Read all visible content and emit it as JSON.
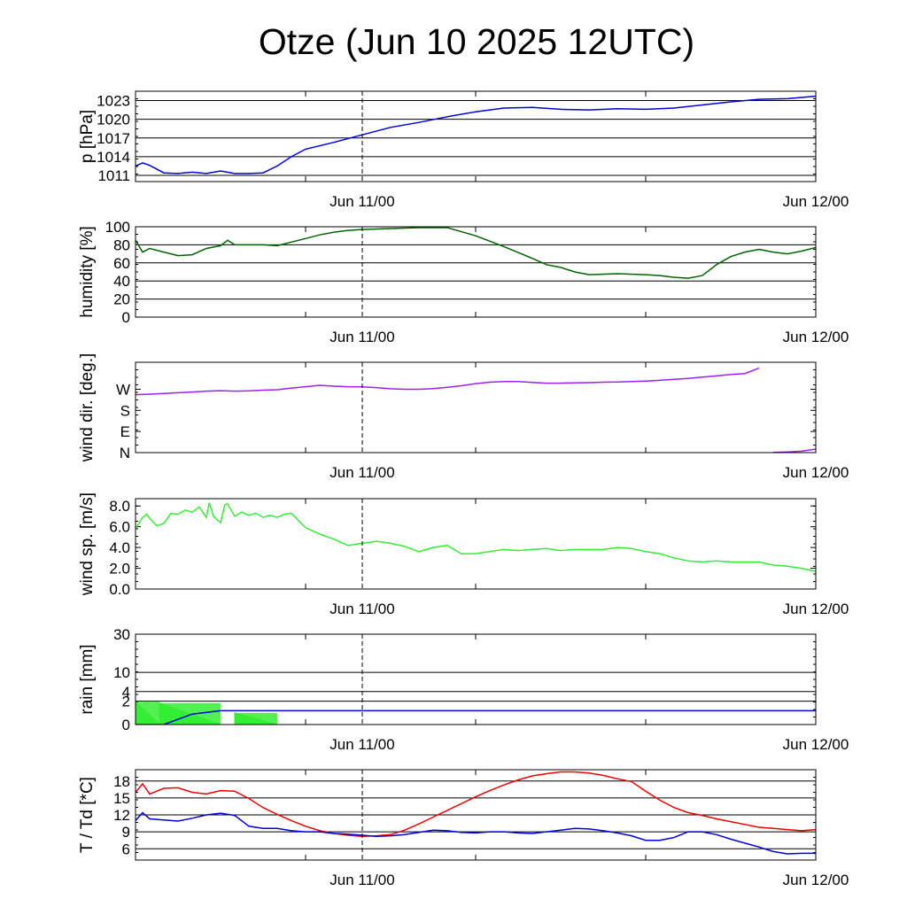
{
  "title": "Otze (Jun 10 2025 12UTC)",
  "x_ticks": [
    "Jun 11/00",
    "Jun 12/00"
  ],
  "chart_data": [
    {
      "type": "line",
      "ylabel": "p [hPa]",
      "ylim": [
        1010,
        1024.5
      ],
      "yticks": [
        1011,
        1014,
        1017,
        1020,
        1023
      ],
      "ytick_labels": [
        "1011",
        "1014",
        "1017",
        "1020",
        "1023"
      ],
      "grid": true,
      "x_hours": [
        0,
        0.5,
        1,
        1.5,
        2,
        3,
        4,
        5,
        6,
        7,
        8,
        9,
        10,
        11,
        12,
        14,
        16,
        18,
        20,
        22,
        24,
        26,
        28,
        30,
        32,
        34,
        36,
        38,
        40,
        42,
        44,
        46,
        48
      ],
      "series": [
        {
          "color": "#0000dd",
          "values": [
            1012.5,
            1013.0,
            1012.6,
            1012.0,
            1011.4,
            1011.3,
            1011.5,
            1011.3,
            1011.7,
            1011.3,
            1011.3,
            1011.4,
            1012.5,
            1014.0,
            1015.2,
            1016.3,
            1017.5,
            1018.7,
            1019.5,
            1020.4,
            1021.2,
            1021.8,
            1021.9,
            1021.6,
            1021.5,
            1021.7,
            1021.6,
            1021.8,
            1022.3,
            1022.8,
            1023.2,
            1023.3,
            1023.7
          ]
        }
      ]
    },
    {
      "type": "line",
      "ylabel": "humidity [%]",
      "ylim": [
        0,
        100
      ],
      "yticks": [
        0,
        20,
        40,
        60,
        80,
        100
      ],
      "ytick_labels": [
        "0",
        "20",
        "40",
        "60",
        "80",
        "100"
      ],
      "grid": true,
      "x_hours": [
        0,
        0.5,
        1,
        2,
        3,
        4,
        5,
        6,
        6.5,
        7,
        8,
        9,
        10,
        11,
        12,
        13,
        14,
        15,
        16,
        18,
        20,
        22,
        24,
        26,
        28,
        29,
        30,
        31,
        32,
        34,
        36,
        37,
        38,
        39,
        40,
        41,
        42,
        43,
        44,
        45,
        46,
        47,
        48
      ],
      "series": [
        {
          "color": "#006400",
          "values": [
            85,
            72,
            76,
            72,
            68,
            69,
            76,
            79,
            85,
            80,
            80,
            80,
            79,
            83,
            87,
            91,
            94,
            96,
            97,
            98,
            99,
            99,
            90,
            78,
            65,
            58,
            55,
            50,
            47,
            48,
            47,
            46,
            44,
            43,
            46,
            58,
            67,
            72,
            75,
            72,
            70,
            73,
            77
          ]
        }
      ]
    },
    {
      "type": "line",
      "ylabel": "wind dir. [deg.]",
      "ylim": [
        0,
        385
      ],
      "yticks": [
        0,
        90,
        180,
        270
      ],
      "ytick_labels": [
        "N",
        "E",
        "S",
        "W"
      ],
      "grid": false,
      "x_hours": [
        0,
        1,
        2,
        3,
        4,
        5,
        6,
        7,
        8,
        9,
        10,
        11,
        12,
        13,
        14,
        15,
        16,
        17,
        18,
        19,
        20,
        21,
        22,
        23,
        24,
        25,
        26,
        27,
        28,
        29,
        30,
        31,
        32,
        33,
        34,
        35,
        36,
        37,
        38,
        39,
        40,
        41,
        42,
        43,
        44,
        45,
        46,
        47,
        48
      ],
      "series": [
        {
          "color": "#a020f0",
          "values": [
            247,
            249,
            252,
            255,
            258,
            262,
            264,
            262,
            263,
            266,
            268,
            275,
            281,
            287,
            283,
            281,
            280,
            277,
            272,
            270,
            270,
            273,
            278,
            285,
            294,
            300,
            303,
            303,
            299,
            296,
            296,
            297,
            298,
            300,
            301,
            303,
            305,
            308,
            312,
            316,
            322,
            327,
            333,
            337,
            360,
            361,
            363,
            366,
            375
          ]
        }
      ]
    },
    {
      "type": "line",
      "ylabel": "wind sp. [m/s]",
      "ylim": [
        0,
        8.7
      ],
      "yticks": [
        0,
        2,
        4,
        6,
        8
      ],
      "ytick_labels": [
        "0.0",
        "2.0",
        "4.0",
        "6.0",
        "8.0"
      ],
      "grid": false,
      "x_hours": [
        0,
        0.5,
        0.8,
        1,
        1.5,
        2,
        2.5,
        3,
        3.5,
        4,
        4.5,
        5,
        5.2,
        5.5,
        6,
        6.3,
        6.5,
        7,
        7.5,
        8,
        8.5,
        9,
        9.5,
        10,
        10.5,
        11,
        11.5,
        12,
        13,
        14,
        15,
        16,
        17,
        18,
        19,
        20,
        21,
        22,
        23,
        24,
        25,
        26,
        27,
        28,
        29,
        30,
        31,
        32,
        33,
        34,
        35,
        36,
        37,
        38,
        39,
        40,
        41,
        42,
        43,
        44,
        45,
        46,
        47,
        48
      ],
      "series": [
        {
          "color": "#33ee33",
          "values": [
            5.8,
            6.9,
            7.2,
            6.8,
            6.1,
            6.3,
            7.3,
            7.2,
            7.6,
            7.4,
            7.9,
            6.9,
            8.3,
            7.0,
            6.4,
            8.1,
            8.2,
            7.0,
            7.4,
            7.1,
            7.3,
            6.9,
            7.1,
            6.9,
            7.2,
            7.3,
            6.6,
            5.9,
            5.3,
            4.8,
            4.2,
            4.4,
            4.6,
            4.4,
            4.1,
            3.6,
            4.0,
            4.2,
            3.4,
            3.4,
            3.6,
            3.8,
            3.7,
            3.8,
            3.9,
            3.7,
            3.8,
            3.8,
            3.8,
            4.0,
            3.9,
            3.6,
            3.4,
            3.0,
            2.7,
            2.6,
            2.7,
            2.6,
            2.6,
            2.6,
            2.3,
            2.2,
            2.0,
            1.7
          ]
        }
      ]
    },
    {
      "type": "area",
      "ylabel": "rain [mm]",
      "scale": "sqrt",
      "ylim": [
        0,
        30
      ],
      "yticks": [
        0,
        2,
        4,
        10,
        30
      ],
      "ytick_labels": [
        "0",
        "2",
        "4",
        "10",
        "30"
      ],
      "grid": true,
      "rain_bars": [
        {
          "x_start_hours": 0,
          "x_end_hours": 1.7,
          "value": 1.9,
          "color": "#33ee33"
        },
        {
          "x_start_hours": 1.7,
          "x_end_hours": 6,
          "value": 1.7,
          "color": "#33ee33"
        },
        {
          "x_start_hours": 7,
          "x_end_hours": 10,
          "value": 0.5,
          "color": "#33ee33"
        }
      ],
      "series": [
        {
          "color": "#0000dd",
          "x_hours": [
            0,
            2,
            3,
            4,
            6,
            48
          ],
          "values": [
            0,
            0,
            0.1,
            0.4,
            0.7,
            0.7
          ]
        }
      ]
    },
    {
      "type": "line",
      "ylabel": "T / Td [*C]",
      "ylim": [
        4,
        20
      ],
      "yticks": [
        6,
        9,
        12,
        15,
        18
      ],
      "ytick_labels": [
        "6",
        "9",
        "12",
        "15",
        "18"
      ],
      "grid": true,
      "x_hours": [
        0,
        0.5,
        1,
        2,
        3,
        4,
        5,
        6,
        7,
        8,
        9,
        10,
        11,
        12,
        13,
        14,
        15,
        16,
        17,
        18,
        19,
        20,
        21,
        22,
        23,
        24,
        25,
        26,
        27,
        28,
        29,
        30,
        31,
        32,
        33,
        34,
        35,
        36,
        37,
        38,
        39,
        40,
        41,
        42,
        43,
        44,
        45,
        46,
        47,
        48
      ],
      "series": [
        {
          "color": "#ee0000",
          "values": [
            16,
            17.5,
            15.7,
            16.7,
            16.8,
            16.0,
            15.7,
            16.3,
            16.2,
            14.9,
            13.3,
            12.1,
            11.0,
            10.0,
            9.2,
            8.7,
            8.4,
            8.2,
            8.3,
            8.5,
            9.3,
            10.4,
            11.6,
            12.8,
            14.0,
            15.2,
            16.3,
            17.3,
            18.2,
            18.9,
            19.3,
            19.6,
            19.6,
            19.4,
            19.0,
            18.4,
            17.9,
            16.2,
            14.6,
            13.3,
            12.4,
            11.9,
            11.3,
            10.8,
            10.3,
            9.8,
            9.6,
            9.4,
            9.2,
            9.4
          ]
        },
        {
          "color": "#0000dd",
          "values": [
            11,
            12.4,
            11.3,
            11.1,
            10.9,
            11.4,
            12.0,
            12.3,
            11.9,
            10.0,
            9.6,
            9.6,
            9.2,
            9.0,
            9.0,
            8.7,
            8.6,
            8.4,
            8.2,
            8.3,
            8.5,
            8.9,
            9.3,
            9.2,
            8.9,
            8.8,
            9.0,
            9.0,
            8.8,
            8.7,
            9.0,
            9.3,
            9.6,
            9.5,
            9.2,
            8.8,
            8.3,
            7.5,
            7.5,
            8.0,
            9.0,
            9.0,
            8.5,
            7.7,
            7.0,
            6.3,
            5.5,
            5.1,
            5.2,
            5.2
          ]
        }
      ]
    }
  ]
}
